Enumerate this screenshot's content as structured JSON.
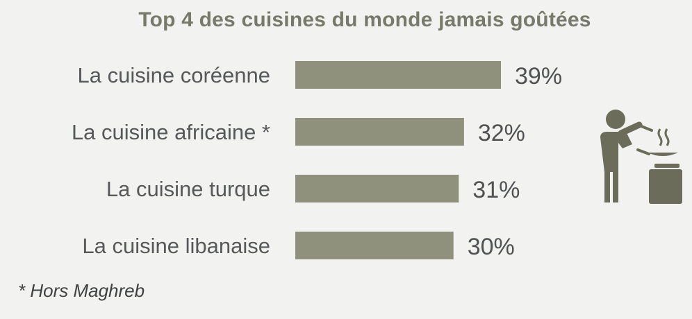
{
  "chart_data": {
    "type": "bar",
    "orientation": "horizontal",
    "title": "Top 4 des cuisines du monde jamais goûtées",
    "categories": [
      "La cuisine coréenne",
      "La cuisine africaine *",
      "La cuisine turque",
      "La cuisine libanaise"
    ],
    "values": [
      39,
      32,
      31,
      30
    ],
    "value_labels": [
      "39%",
      "32%",
      "31%",
      "30%"
    ],
    "unit": "%",
    "grid": false,
    "legend": "none",
    "bar_color": "#8f917c"
  },
  "footnote": "* Hors Maghreb",
  "icons": {
    "illustration": "chef-cooking-icon"
  },
  "colors": {
    "background": "#f2f2f0",
    "title": "#777a6b",
    "icon": "#6b6d5a"
  }
}
